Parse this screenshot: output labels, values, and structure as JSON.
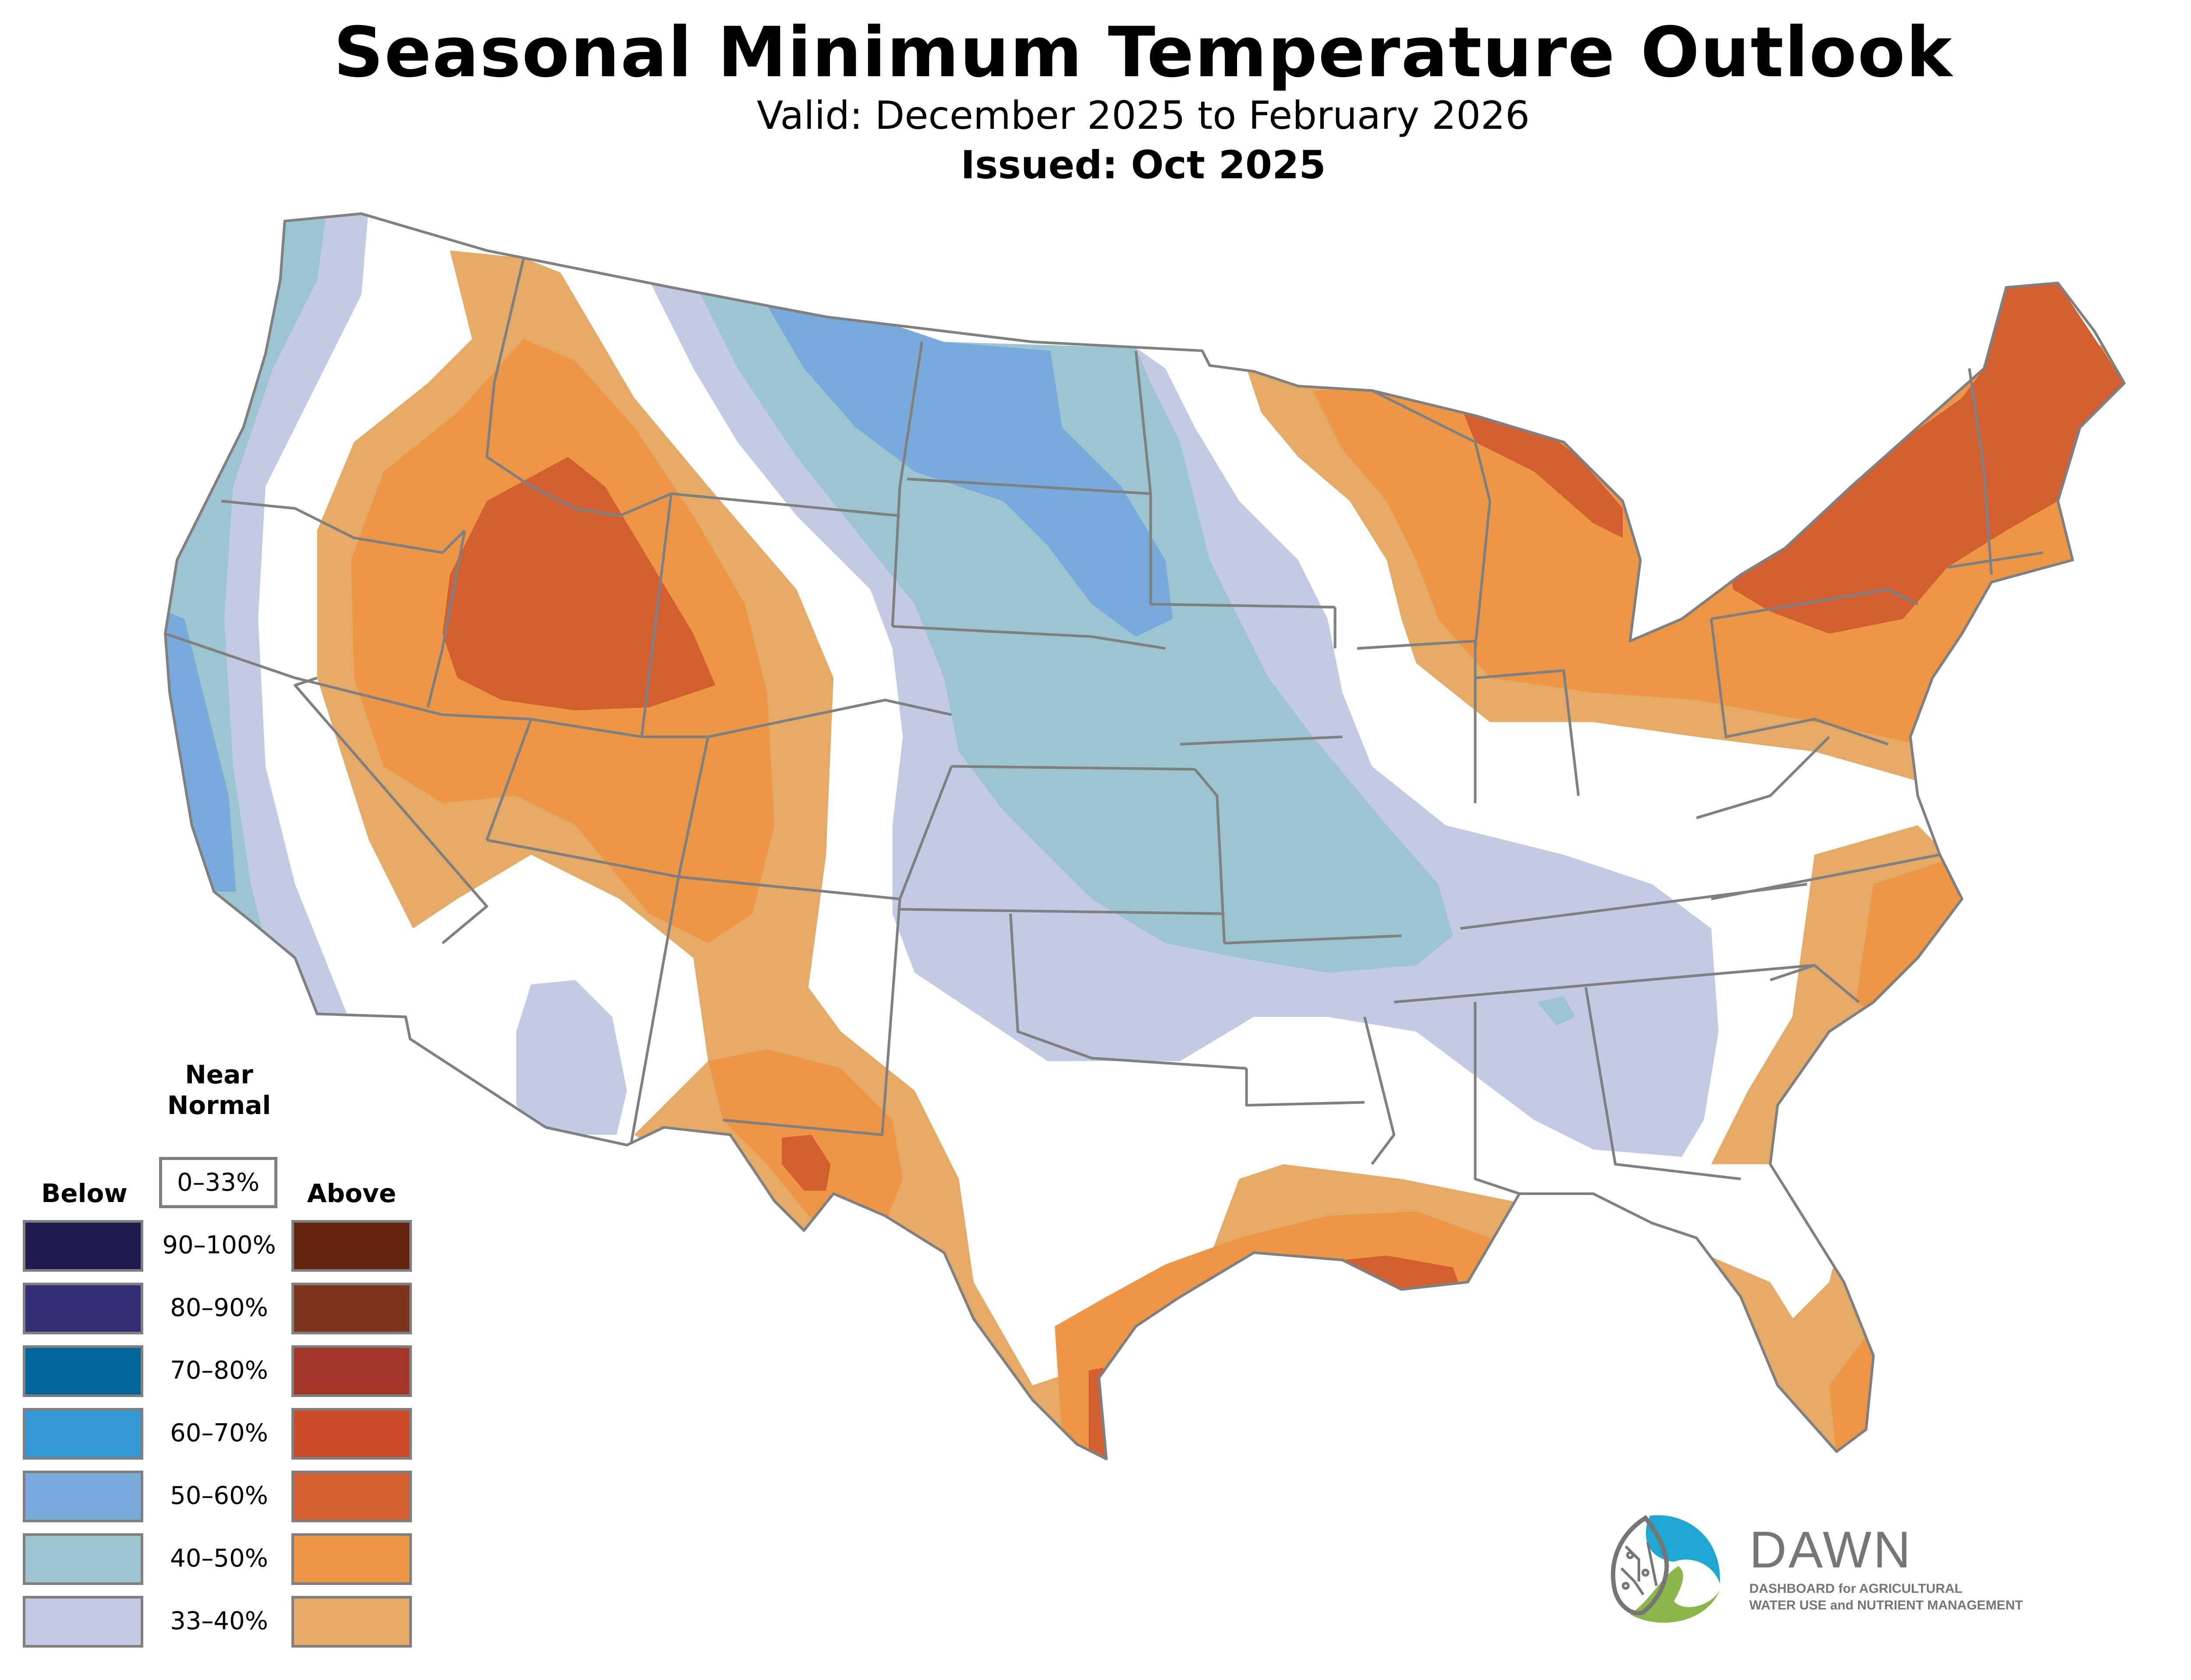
{
  "header": {
    "title": "Seasonal Minimum Temperature Outlook",
    "valid": "Valid: December 2025 to February 2026",
    "issued": "Issued: Oct 2025"
  },
  "legend": {
    "near_normal_title": "Near Normal",
    "near_normal_range": "0–33%",
    "below_label": "Below",
    "above_label": "Above",
    "rows": [
      {
        "range": "90–100%",
        "below_color": "#1f1a4f",
        "above_color": "#622411"
      },
      {
        "range": "80–90%",
        "below_color": "#332d72",
        "above_color": "#7d341d"
      },
      {
        "range": "70–80%",
        "below_color": "#01659b",
        "above_color": "#a33525"
      },
      {
        "range": "60–70%",
        "below_color": "#3399d4",
        "above_color": "#ca4a27"
      },
      {
        "range": "50–60%",
        "below_color": "#78aadb",
        "above_color": "#d35f31"
      },
      {
        "range": "40–50%",
        "below_color": "#9cc5d1",
        "above_color": "#ec9646"
      },
      {
        "range": "33–40%",
        "below_color": "#c3cae3",
        "above_color": "#e6aa67"
      }
    ]
  },
  "logo": {
    "name": "DAWN",
    "line1": "DASHBOARD for AGRICULTURAL",
    "line2": "WATER USE and NUTRIENT MANAGEMENT",
    "blue": "#1fa7d4",
    "green": "#8ab64a",
    "gray": "#767676"
  },
  "map": {
    "border_color": "#808080",
    "regions": [
      {
        "category": "below-33-40",
        "color": "#c3cae3"
      },
      {
        "category": "below-40-50",
        "color": "#9cc5d1"
      },
      {
        "category": "below-50-60",
        "color": "#78aadb"
      },
      {
        "category": "above-33-40",
        "color": "#e6aa67"
      },
      {
        "category": "above-40-50",
        "color": "#ec9646"
      },
      {
        "category": "above-50-60",
        "color": "#d35f31"
      }
    ]
  }
}
